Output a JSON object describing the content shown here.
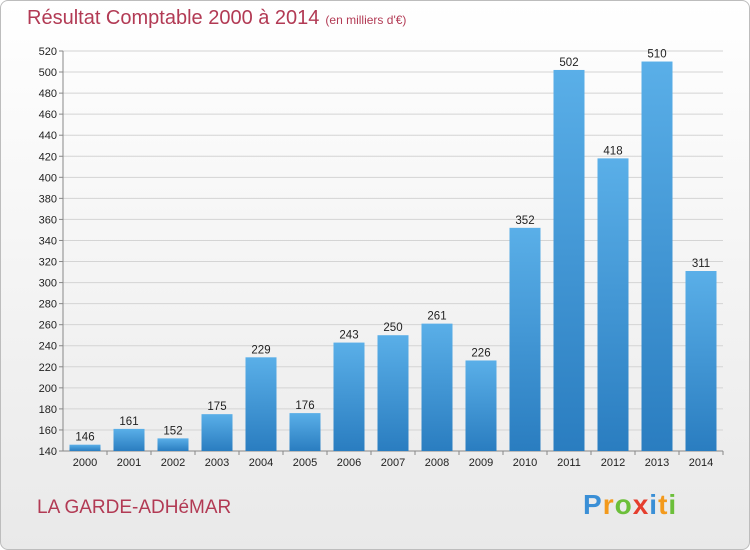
{
  "title": "Résultat Comptable 2000 à 2014",
  "subtitle": "(en milliers d'€)",
  "town": "LA GARDE-ADHéMAR",
  "logo": {
    "letters": [
      "P",
      "r",
      "o",
      "x",
      "i",
      "t",
      "i"
    ],
    "colors": [
      "#3a8fd6",
      "#f39a1c",
      "#6cbf3a",
      "#e53e2e",
      "#3a8fd6",
      "#f39a1c",
      "#6cbf3a"
    ]
  },
  "colors": {
    "bar_light": "#5aafe8",
    "bar_dark": "#2a7dc0",
    "title": "#b23a54"
  },
  "chart_data": {
    "type": "bar",
    "title": "Résultat Comptable 2000 à 2014",
    "categories": [
      "2000",
      "2001",
      "2002",
      "2003",
      "2004",
      "2005",
      "2006",
      "2007",
      "2008",
      "2009",
      "2010",
      "2011",
      "2012",
      "2013",
      "2014"
    ],
    "values": [
      146,
      161,
      152,
      175,
      229,
      176,
      243,
      250,
      261,
      226,
      352,
      502,
      418,
      510,
      311
    ],
    "ylim": [
      140,
      520
    ],
    "yticks": [
      140,
      160,
      180,
      200,
      220,
      240,
      260,
      280,
      300,
      320,
      340,
      360,
      380,
      400,
      420,
      440,
      460,
      480,
      500,
      520
    ],
    "grid": true
  }
}
